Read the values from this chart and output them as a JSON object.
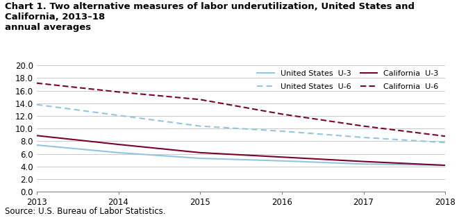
{
  "title_line1": "Chart 1. Two alternative measures of labor underutilization, United States and California, 2013–18",
  "title_line2": "annual averages",
  "source": "Source: U.S. Bureau of Labor Statistics.",
  "x": [
    2013,
    2014,
    2015,
    2016,
    2017,
    2018
  ],
  "us_u3": [
    7.4,
    6.2,
    5.3,
    4.9,
    4.4,
    4.2
  ],
  "us_u6": [
    13.8,
    12.1,
    10.4,
    9.6,
    8.6,
    7.8
  ],
  "ca_u3": [
    8.9,
    7.5,
    6.2,
    5.5,
    4.8,
    4.2
  ],
  "ca_u6": [
    17.2,
    15.8,
    14.6,
    12.3,
    10.4,
    8.8
  ],
  "color_us": "#92c5de",
  "color_ca": "#7b0030",
  "ylim": [
    0.0,
    20.0
  ],
  "yticks": [
    0.0,
    2.0,
    4.0,
    6.0,
    8.0,
    10.0,
    12.0,
    14.0,
    16.0,
    18.0,
    20.0
  ],
  "legend_us_u3": "United States  U-3",
  "legend_us_u6": "United States  U-6",
  "legend_ca_u3": "California  U-3",
  "legend_ca_u6": "California  U-6",
  "title_fontsize": 9.5,
  "axis_fontsize": 8.5,
  "source_fontsize": 8.5,
  "legend_fontsize": 8.0
}
